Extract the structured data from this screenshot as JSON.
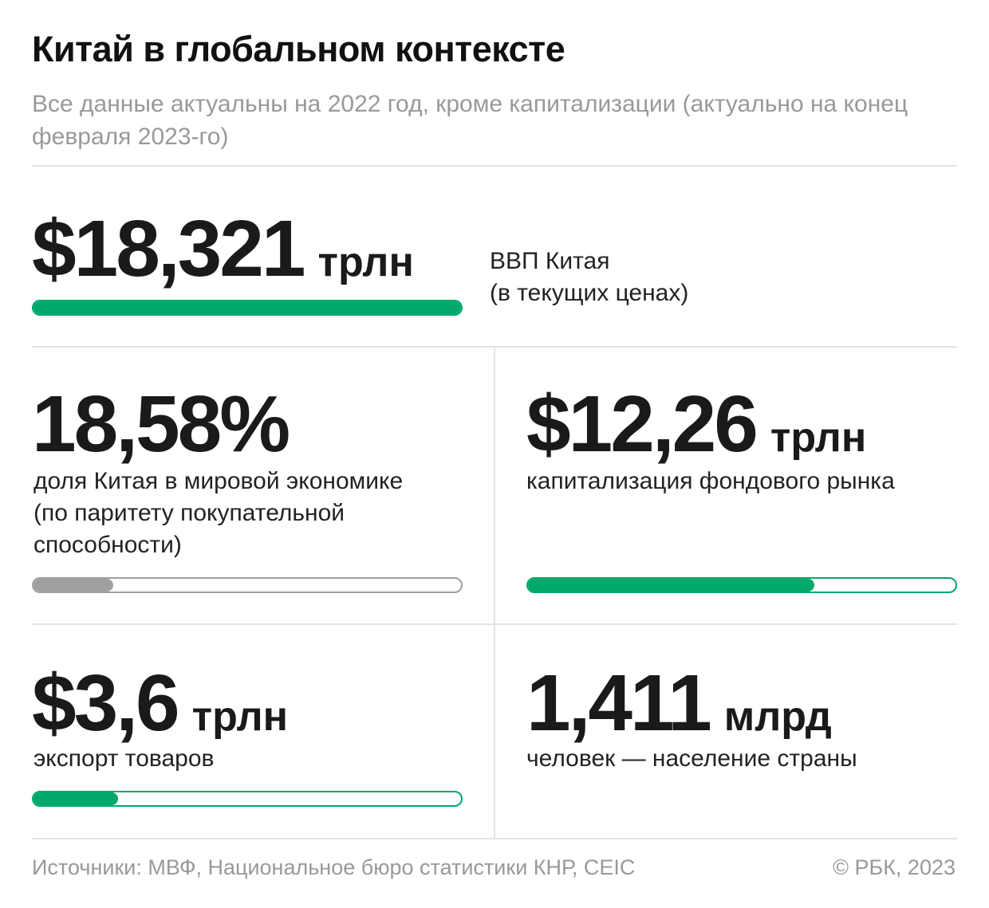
{
  "title": "Китай в глобальном контексте",
  "subtitle": "Все данные актуальны на 2022 год, кроме капитализации (актуально на конец февраля 2023-го)",
  "colors": {
    "accent": "#00a86b",
    "gray": "#a0a0a0",
    "divider": "#e3e3e3",
    "muted": "#999999"
  },
  "metrics": {
    "gdp": {
      "value": "$18,321",
      "unit": "трлн",
      "label_line1": "ВВП Китая",
      "label_line2": "(в текущих ценах)",
      "progress": 1.0
    },
    "share": {
      "value": "18,58%",
      "unit": "",
      "label_line1": "доля Китая в мировой экономике",
      "label_line2": "(по паритету покупательной",
      "label_line3": "способности)",
      "progress": 0.1858
    },
    "capitalization": {
      "value": "$12,26",
      "unit": "трлн",
      "label": "капитализация фондового рынка",
      "progress": 0.67
    },
    "export": {
      "value": "$3,6",
      "unit": "трлн",
      "label": "экспорт товаров",
      "progress": 0.197
    },
    "population": {
      "value": "1,411",
      "unit": "млрд",
      "label": "человек — население страны"
    }
  },
  "footer": {
    "sources": "Источники: МВФ, Национальное бюро статистики КНР, CEIC",
    "copyright": "© РБК, 2023"
  }
}
